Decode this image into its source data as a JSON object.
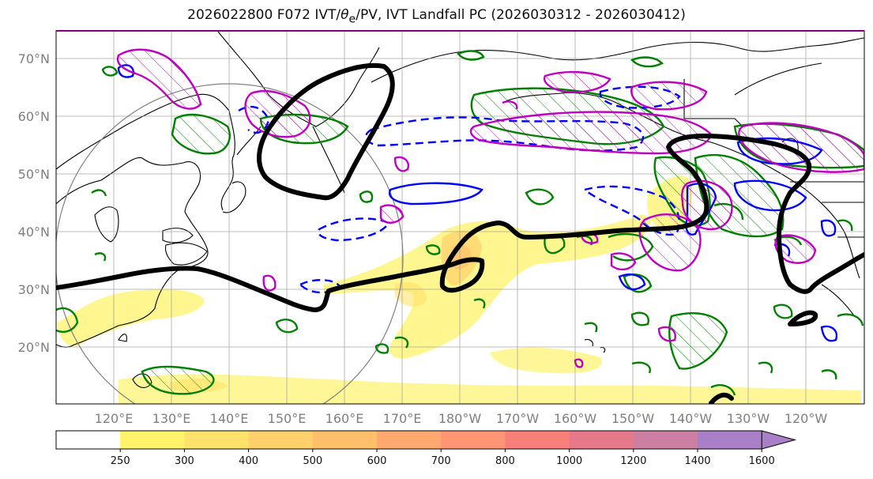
{
  "title": "2026022800 F072 IVT/θe/PV, IVT Landfall PC (2026030312 - 2026030412)",
  "title_parts": {
    "prefix": "2026022800 F072 IVT/",
    "theta": "θ",
    "sub": "e",
    "suffix": "/PV, IVT Landfall PC (2026030312 - 2026030412)"
  },
  "lat_labels": [
    "70°N",
    "60°N",
    "50°N",
    "40°N",
    "30°N",
    "20°N"
  ],
  "lon_labels": [
    "120°E",
    "130°E",
    "140°E",
    "150°E",
    "160°E",
    "170°E",
    "180°W",
    "170°W",
    "160°W",
    "150°W",
    "140°W",
    "130°W",
    "120°W"
  ],
  "colorbar": {
    "ticks": [
      "250",
      "300",
      "400",
      "500",
      "600",
      "700",
      "800",
      "1000",
      "1200",
      "1400",
      "1600"
    ],
    "colors": [
      "#ffffff",
      "#fff36b",
      "#ffe26b",
      "#ffd06b",
      "#ffbf6b",
      "#ffa970",
      "#ff9573",
      "#f98078",
      "#e5798a",
      "#cc7ea3",
      "#a97fc8"
    ]
  },
  "colors": {
    "pv_contour": "#000000",
    "theta_e": "#008000",
    "ivt_neg": "#0000ff",
    "ivt_pos": "#c000c0",
    "grid": "#9a9a9a",
    "circle": "#808080"
  }
}
